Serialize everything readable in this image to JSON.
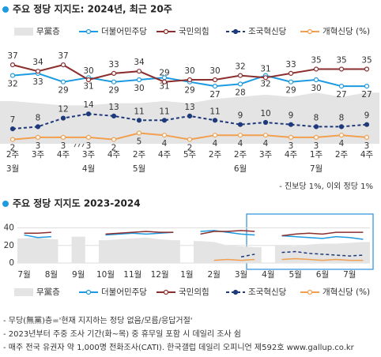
{
  "chart_data": [
    {
      "type": "line",
      "title": "주요 정당 지지도: 2024년, 최근 20주",
      "categories": [
        "2주",
        "3주",
        "4주",
        "3주",
        "4주",
        "2주",
        "4주",
        "5주",
        "2주",
        "2주",
        "3주",
        "4주",
        "1주",
        "2주",
        "4주"
      ],
      "months": [
        "3월",
        null,
        null,
        "4월",
        null,
        "5월",
        null,
        null,
        null,
        "6월",
        null,
        null,
        "7월",
        null,
        null
      ],
      "ylim": [
        0,
        40
      ],
      "series": [
        {
          "name": "무黨층",
          "color": "#e4e4e4",
          "style": "area",
          "values": [
            20,
            19,
            18,
            18,
            19,
            19,
            20,
            19,
            21,
            22,
            23,
            22,
            24,
            22,
            24
          ]
        },
        {
          "name": "더불어민주당",
          "color": "#1e9be0",
          "style": "line",
          "values": [
            32,
            33,
            29,
            31,
            29,
            30,
            31,
            29,
            27,
            28,
            32,
            29,
            30,
            27,
            27
          ]
        },
        {
          "name": "국민의힘",
          "color": "#8b2e2e",
          "style": "line",
          "values": [
            37,
            34,
            37,
            30,
            33,
            34,
            29,
            30,
            30,
            32,
            31,
            33,
            35,
            35,
            35
          ]
        },
        {
          "name": "조국혁신당",
          "color": "#1f3a7a",
          "style": "dashed",
          "values": [
            7,
            8,
            12,
            14,
            13,
            11,
            11,
            13,
            11,
            9,
            10,
            9,
            8,
            8,
            9
          ]
        },
        {
          "name": "개혁신당 (%)",
          "color": "#f0a050",
          "style": "line",
          "values": [
            2,
            3,
            3,
            3,
            2,
            5,
            4,
            2,
            4,
            4,
            4,
            3,
            3,
            4,
            3
          ]
        }
      ],
      "note": "- 진보당 1%, 이외 정당 1%"
    },
    {
      "type": "line",
      "title": "주요 정당 지지도 2023-2024",
      "categories": [
        "7월",
        null,
        "8월",
        null,
        "9월",
        null,
        "10월",
        null,
        "11월",
        null,
        "12월",
        null,
        "1월",
        null,
        "2월",
        null,
        "3월",
        null,
        "4월",
        null,
        "5월",
        null,
        "6월",
        null,
        "7월",
        null
      ],
      "ylim": [
        0,
        45
      ],
      "yticks": [
        0,
        20,
        40
      ],
      "grid": true,
      "series": [
        {
          "name": "무黨층",
          "color": "#e4e4e4",
          "style": "area",
          "values": [
            28,
            29,
            27,
            null,
            30,
            null,
            26,
            27,
            28,
            29,
            27,
            26,
            null,
            25,
            24,
            20,
            19,
            18,
            null,
            20,
            19,
            21,
            22,
            22,
            23,
            24
          ]
        },
        {
          "name": "더불어민주당",
          "color": "#1e9be0",
          "style": "line",
          "values": [
            32,
            29,
            30,
            null,
            27,
            null,
            32,
            33,
            34,
            33,
            34,
            35,
            null,
            36,
            37,
            35,
            33,
            32,
            null,
            31,
            30,
            29,
            28,
            30,
            29,
            27
          ]
        },
        {
          "name": "국민의힘",
          "color": "#8b2e2e",
          "style": "line",
          "values": [
            34,
            34,
            35,
            null,
            36,
            null,
            33,
            34,
            35,
            36,
            35,
            35,
            null,
            33,
            36,
            36,
            37,
            36,
            null,
            31,
            33,
            34,
            33,
            35,
            35,
            35
          ]
        },
        {
          "name": "조국혁신당",
          "color": "#1f3a7a",
          "style": "dashed",
          "values": [
            null,
            null,
            null,
            null,
            null,
            null,
            null,
            null,
            null,
            null,
            null,
            null,
            null,
            null,
            null,
            null,
            7,
            10,
            null,
            12,
            13,
            11,
            10,
            9,
            8,
            9
          ]
        },
        {
          "name": "개혁신당 (%)",
          "color": "#f0a050",
          "style": "line",
          "values": [
            null,
            null,
            null,
            null,
            null,
            null,
            null,
            null,
            null,
            null,
            null,
            null,
            null,
            null,
            3,
            4,
            3,
            4,
            null,
            4,
            5,
            4,
            3,
            4,
            3,
            3
          ]
        }
      ]
    }
  ],
  "notes": [
    "- 무당(無黨)층='현재 지지하는 정당 없음/모름/응답거절'",
    "- 2023년부터 주중 조사 기간(화~목) 중 휴무일 포함 시 데일리 조사 쉼",
    "- 매주 전국 유권자 약 1,000명 전화조사(CATI). 한국갤럽 데일리 오피니언 제592호 www.gallup.co.kr"
  ]
}
